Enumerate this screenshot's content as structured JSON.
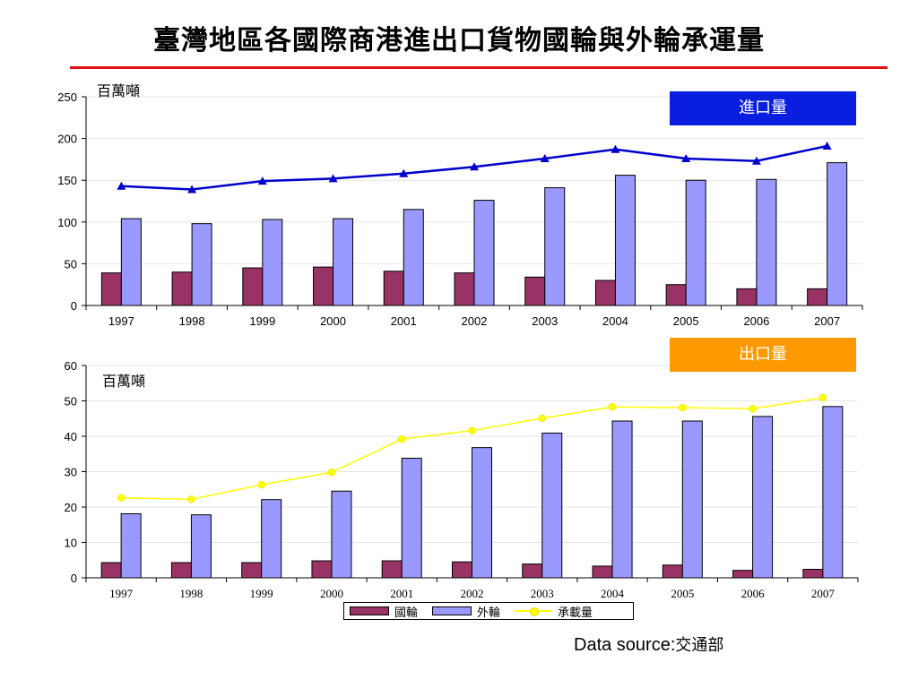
{
  "page": {
    "title": "臺灣地區各國際商港進出口貨物國輪與外輪承運量",
    "source_prefix": "Data source:",
    "source_name": "交通部"
  },
  "colors": {
    "title_rule": "#e01010",
    "domestic": "#993366",
    "foreign": "#9999ff",
    "import_line": "#0000cc",
    "export_line": "#ffff00",
    "import_badge": "#0a1ee0",
    "export_badge": "#ff9900"
  },
  "legend": {
    "domestic": "國輪",
    "foreign": "外輪",
    "total": "承載量"
  },
  "chart_data": [
    {
      "type": "bar",
      "badge": "進口量",
      "unit_label": "百萬噸",
      "categories": [
        "1997",
        "1998",
        "1999",
        "2000",
        "2001",
        "2002",
        "2003",
        "2004",
        "2005",
        "2006",
        "2007"
      ],
      "ylim": [
        0,
        250
      ],
      "yticks": [
        0,
        50,
        100,
        150,
        200,
        250
      ],
      "grid": true,
      "series": [
        {
          "name": "國輪",
          "kind": "bar",
          "values": [
            39,
            40,
            45,
            46,
            41,
            39,
            34,
            30,
            25,
            20,
            20
          ]
        },
        {
          "name": "外輪",
          "kind": "bar",
          "values": [
            104,
            98,
            103,
            104,
            115,
            126,
            141,
            156,
            150,
            151,
            171
          ]
        },
        {
          "name": "承載量",
          "kind": "line",
          "values": [
            143,
            139,
            149,
            152,
            158,
            166,
            176,
            187,
            176,
            173,
            191
          ]
        }
      ]
    },
    {
      "type": "bar",
      "badge": "出口量",
      "unit_label": "百萬噸",
      "categories": [
        "1997",
        "1998",
        "1999",
        "2000",
        "2001",
        "2002",
        "2003",
        "2004",
        "2005",
        "2006",
        "2007"
      ],
      "ylim": [
        0,
        60
      ],
      "yticks": [
        0,
        10,
        20,
        30,
        40,
        50,
        60
      ],
      "grid": true,
      "legend_position": "bottom",
      "series": [
        {
          "name": "國輪",
          "kind": "bar",
          "values": [
            4.3,
            4.3,
            4.3,
            4.8,
            4.8,
            4.5,
            3.9,
            3.3,
            3.6,
            2.1,
            2.4
          ]
        },
        {
          "name": "外輪",
          "kind": "bar",
          "values": [
            18.1,
            17.8,
            22.1,
            24.5,
            33.8,
            36.8,
            40.9,
            44.3,
            44.3,
            45.6,
            48.4
          ]
        },
        {
          "name": "承載量",
          "kind": "line",
          "values": [
            22.6,
            22.2,
            26.3,
            29.8,
            39.2,
            41.6,
            45.1,
            48.3,
            48.1,
            47.8,
            50.9
          ]
        }
      ]
    }
  ]
}
